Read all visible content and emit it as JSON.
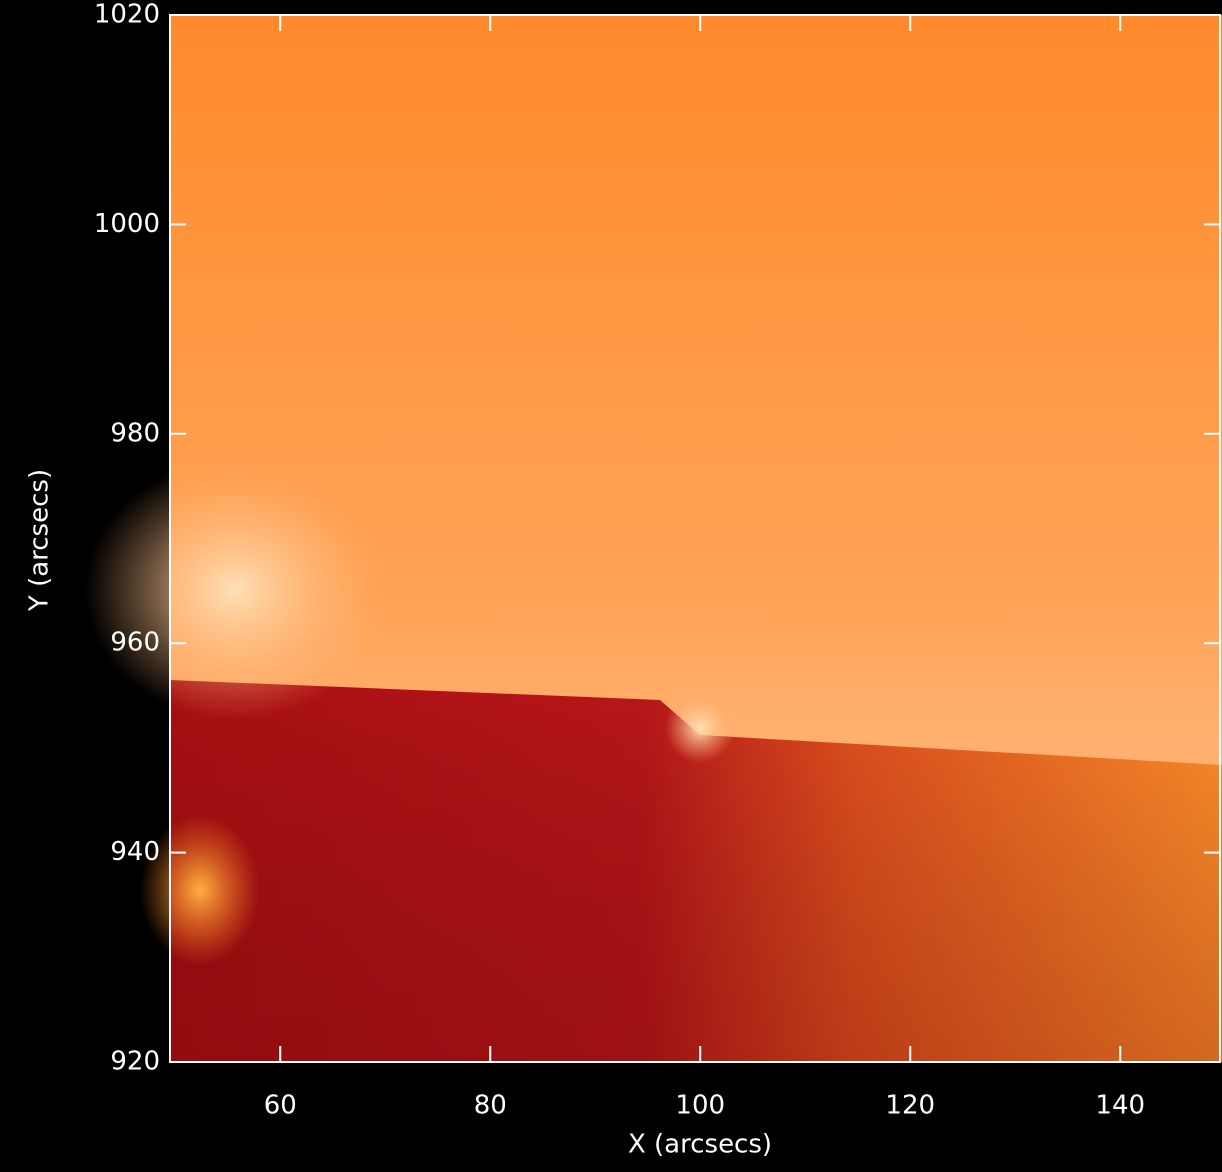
{
  "chart_data": {
    "type": "image",
    "x_label": "X (arcsecs)",
    "y_label": "Y (arcsecs)",
    "xlim": [
      49.5,
      149.5
    ],
    "ylim": [
      920,
      1020
    ],
    "xticks": [
      60,
      80,
      100,
      120,
      140
    ],
    "yticks": [
      920,
      940,
      960,
      980,
      1000,
      1020
    ]
  }
}
